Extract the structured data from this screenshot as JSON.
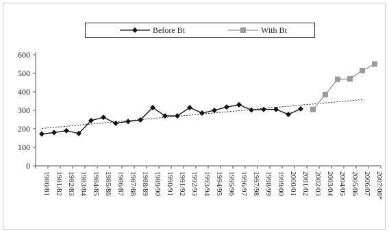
{
  "chart_data": {
    "type": "line",
    "title": "",
    "xlabel": "",
    "ylabel": "",
    "ylim": [
      0,
      600
    ],
    "yticks": [
      0,
      100,
      200,
      300,
      400,
      500,
      600
    ],
    "categories": [
      "1980/81",
      "1981/82",
      "1982/83",
      "1983/84",
      "1984/85",
      "1985/86",
      "1986/87",
      "1987/88",
      "1988/89",
      "1989/90",
      "1990/91",
      "1991/92",
      "1992/93",
      "1993/94",
      "1994/95",
      "1995/96",
      "1996/97",
      "1997/98",
      "1998/99",
      "1999/00",
      "2000/01",
      "2001/02",
      "2002/03",
      "2003/04",
      "2004/05",
      "2005/06",
      "2006/07",
      "2007/08*"
    ],
    "series": [
      {
        "name": "Before Bt",
        "color": "#111111",
        "marker": "diamond",
        "values": [
          172,
          180,
          190,
          175,
          245,
          262,
          230,
          240,
          248,
          315,
          270,
          270,
          315,
          285,
          300,
          318,
          330,
          302,
          305,
          305,
          278,
          308,
          null,
          null,
          null,
          null,
          null,
          null
        ]
      },
      {
        "name": "With Bt",
        "color": "#9a9a9a",
        "marker": "square",
        "values": [
          null,
          null,
          null,
          null,
          null,
          null,
          null,
          null,
          null,
          null,
          null,
          null,
          null,
          null,
          null,
          null,
          null,
          null,
          null,
          null,
          null,
          null,
          305,
          385,
          468,
          470,
          515,
          550
        ]
      }
    ],
    "trendline": {
      "style": "dotted",
      "color": "#222222",
      "from_index": 0,
      "to_index": 26,
      "start_value": 202,
      "end_value": 358
    },
    "legend_position": "top-center",
    "grid": false
  }
}
